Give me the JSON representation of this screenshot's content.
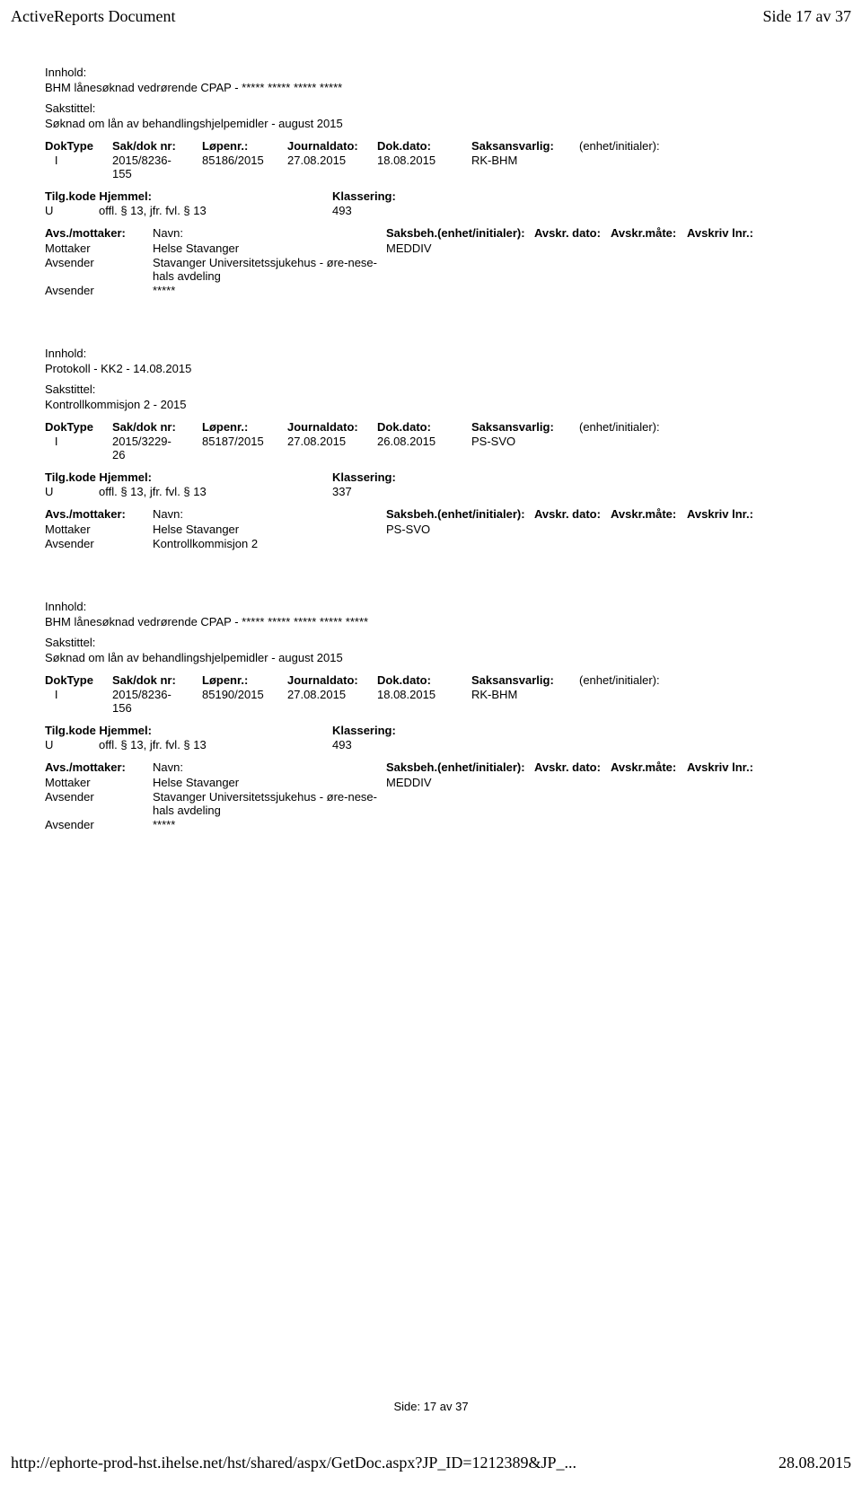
{
  "header": {
    "title": "ActiveReports Document",
    "page_info": "Side 17 av 37"
  },
  "records": [
    {
      "innhold_label": "Innhold:",
      "innhold": "BHM lånesøknad vedrørende CPAP - ***** ***** ***** *****",
      "sakstittel_label": "Sakstittel:",
      "sakstittel": "Søknad om lån av behandlingshjelpemidler - august 2015",
      "meta_hdr": {
        "doktype": "DokType",
        "sakdok": "Sak/dok nr:",
        "lopen": "Løpenr.:",
        "journaldato": "Journaldato:",
        "dokdato": "Dok.dato:",
        "saksansvarlig": "Saksansvarlig:",
        "enhet": "(enhet/initialer):"
      },
      "meta_val": {
        "doktype": "I",
        "sakdok": "2015/8236-155",
        "lopen": "85186/2015",
        "journaldato": "27.08.2015",
        "dokdato": "18.08.2015",
        "saksansvarlig": "RK-BHM",
        "enhet": ""
      },
      "tilg_hdr": {
        "label": "Tilg.kode Hjemmel:",
        "klass": "Klassering:"
      },
      "tilg_val": {
        "tilgkode": "U",
        "hjemmel": "offl. § 13, jfr. fvl. § 13",
        "klass": "493"
      },
      "parts_hdr": {
        "avs": "Avs./mottaker:",
        "navn": "Navn:",
        "saksbeh": "Saksbeh.(enhet/initialer):",
        "avskr_dato": "Avskr. dato:",
        "avskr_mate": "Avskr.måte:",
        "avskriv_lnr": "Avskriv lnr.:"
      },
      "parts": [
        {
          "role": "Mottaker",
          "navn": "Helse Stavanger",
          "saksbeh": "MEDDIV"
        },
        {
          "role": "Avsender",
          "navn": "Stavanger Universitetssjukehus - øre-nese-hals avdeling",
          "saksbeh": ""
        },
        {
          "role": "Avsender",
          "navn": "*****",
          "saksbeh": ""
        }
      ]
    },
    {
      "innhold_label": "Innhold:",
      "innhold": "Protokoll - KK2 - 14.08.2015",
      "sakstittel_label": "Sakstittel:",
      "sakstittel": "Kontrollkommisjon 2 - 2015",
      "meta_hdr": {
        "doktype": "DokType",
        "sakdok": "Sak/dok nr:",
        "lopen": "Løpenr.:",
        "journaldato": "Journaldato:",
        "dokdato": "Dok.dato:",
        "saksansvarlig": "Saksansvarlig:",
        "enhet": "(enhet/initialer):"
      },
      "meta_val": {
        "doktype": "I",
        "sakdok": "2015/3229-26",
        "lopen": "85187/2015",
        "journaldato": "27.08.2015",
        "dokdato": "26.08.2015",
        "saksansvarlig": "PS-SVO",
        "enhet": ""
      },
      "tilg_hdr": {
        "label": "Tilg.kode Hjemmel:",
        "klass": "Klassering:"
      },
      "tilg_val": {
        "tilgkode": "U",
        "hjemmel": "offl. § 13, jfr. fvl. § 13",
        "klass": "337"
      },
      "parts_hdr": {
        "avs": "Avs./mottaker:",
        "navn": "Navn:",
        "saksbeh": "Saksbeh.(enhet/initialer):",
        "avskr_dato": "Avskr. dato:",
        "avskr_mate": "Avskr.måte:",
        "avskriv_lnr": "Avskriv lnr.:"
      },
      "parts": [
        {
          "role": "Mottaker",
          "navn": "Helse Stavanger",
          "saksbeh": "PS-SVO"
        },
        {
          "role": "Avsender",
          "navn": "Kontrollkommisjon 2",
          "saksbeh": ""
        }
      ]
    },
    {
      "innhold_label": "Innhold:",
      "innhold": "BHM lånesøknad vedrørende CPAP - ***** ***** ***** ***** *****",
      "sakstittel_label": "Sakstittel:",
      "sakstittel": "Søknad om lån av behandlingshjelpemidler - august 2015",
      "meta_hdr": {
        "doktype": "DokType",
        "sakdok": "Sak/dok nr:",
        "lopen": "Løpenr.:",
        "journaldato": "Journaldato:",
        "dokdato": "Dok.dato:",
        "saksansvarlig": "Saksansvarlig:",
        "enhet": "(enhet/initialer):"
      },
      "meta_val": {
        "doktype": "I",
        "sakdok": "2015/8236-156",
        "lopen": "85190/2015",
        "journaldato": "27.08.2015",
        "dokdato": "18.08.2015",
        "saksansvarlig": "RK-BHM",
        "enhet": ""
      },
      "tilg_hdr": {
        "label": "Tilg.kode Hjemmel:",
        "klass": "Klassering:"
      },
      "tilg_val": {
        "tilgkode": "U",
        "hjemmel": "offl. § 13, jfr. fvl. § 13",
        "klass": "493"
      },
      "parts_hdr": {
        "avs": "Avs./mottaker:",
        "navn": "Navn:",
        "saksbeh": "Saksbeh.(enhet/initialer):",
        "avskr_dato": "Avskr. dato:",
        "avskr_mate": "Avskr.måte:",
        "avskriv_lnr": "Avskriv lnr.:"
      },
      "parts": [
        {
          "role": "Mottaker",
          "navn": "Helse Stavanger",
          "saksbeh": "MEDDIV"
        },
        {
          "role": "Avsender",
          "navn": "Stavanger Universitetssjukehus - øre-nese-hals avdeling",
          "saksbeh": ""
        },
        {
          "role": "Avsender",
          "navn": "*****",
          "saksbeh": ""
        }
      ]
    }
  ],
  "footer": {
    "side": "Side: 17 av 37",
    "url": "http://ephorte-prod-hst.ihelse.net/hst/shared/aspx/GetDoc.aspx?JP_ID=1212389&JP_...",
    "date": "28.08.2015"
  }
}
